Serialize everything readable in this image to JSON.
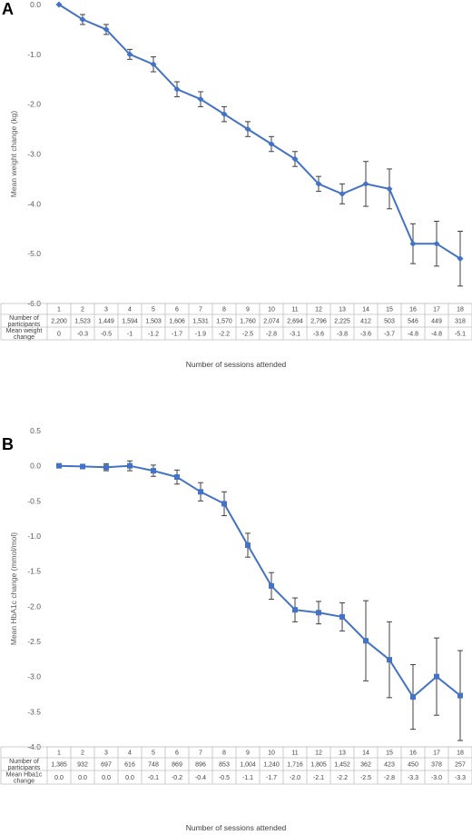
{
  "chart_data": [
    {
      "panel": "A",
      "type": "line",
      "xlabel": "Number of sessions attended",
      "ylabel": "Mean weight change (kg)",
      "ylim": [
        -6.0,
        0.0
      ],
      "yticks": [
        "0.0",
        "-1.0",
        "-2.0",
        "-3.0",
        "-4.0",
        "-5.0",
        "-6.0"
      ],
      "ytick_values": [
        0,
        -1,
        -2,
        -3,
        -4,
        -5,
        -6
      ],
      "marker": "diamond",
      "color": "#4472c4",
      "x": [
        "1",
        "2",
        "3",
        "4",
        "5",
        "6",
        "7",
        "8",
        "9",
        "10",
        "11",
        "12",
        "13",
        "14",
        "15",
        "16",
        "17",
        "18"
      ],
      "values": [
        0,
        -0.3,
        -0.5,
        -1.0,
        -1.2,
        -1.7,
        -1.9,
        -2.2,
        -2.5,
        -2.8,
        -3.1,
        -3.6,
        -3.8,
        -3.6,
        -3.7,
        -4.8,
        -4.8,
        -5.1
      ],
      "error": [
        0,
        0.1,
        0.1,
        0.1,
        0.15,
        0.15,
        0.15,
        0.15,
        0.15,
        0.15,
        0.15,
        0.15,
        0.2,
        0.45,
        0.4,
        0.4,
        0.45,
        0.55
      ],
      "table": {
        "row1_label": [
          "Number of",
          "participants"
        ],
        "row2_label": [
          "Mean weight",
          "change"
        ],
        "participants": [
          "2,200",
          "1,523",
          "1,449",
          "1,594",
          "1,503",
          "1,606",
          "1,531",
          "1,570",
          "1,760",
          "2,074",
          "2,694",
          "2,796",
          "2,225",
          "412",
          "503",
          "546",
          "449",
          "318"
        ],
        "change": [
          "0",
          "-0.3",
          "-0.5",
          "-1",
          "-1.2",
          "-1.7",
          "-1.9",
          "-2.2",
          "-2.5",
          "-2.8",
          "-3.1",
          "-3.6",
          "-3.8",
          "-3.6",
          "-3.7",
          "-4.8",
          "-4.8",
          "-5.1"
        ]
      }
    },
    {
      "panel": "B",
      "type": "line",
      "xlabel": "Number of sessions attended",
      "ylabel": "Mean HbA1c change (mmol/mol)",
      "ylim": [
        -4.0,
        0.5
      ],
      "yticks": [
        "0.5",
        "0.0",
        "-0.5",
        "-1.0",
        "-1.5",
        "-2.0",
        "-2.5",
        "-3.0",
        "-3.5",
        "-4.0"
      ],
      "ytick_values": [
        0.5,
        0,
        -0.5,
        -1,
        -1.5,
        -2,
        -2.5,
        -3,
        -3.5,
        -4
      ],
      "marker": "square",
      "color": "#4472c4",
      "x": [
        "1",
        "2",
        "3",
        "4",
        "5",
        "6",
        "7",
        "8",
        "9",
        "10",
        "11",
        "12",
        "13",
        "14",
        "15",
        "16",
        "17",
        "18"
      ],
      "values": [
        0.0,
        -0.01,
        -0.02,
        0.0,
        -0.07,
        -0.16,
        -0.37,
        -0.54,
        -1.13,
        -1.71,
        -2.05,
        -2.09,
        -2.15,
        -2.49,
        -2.76,
        -3.29,
        -3.0,
        -3.27
      ],
      "error": [
        0.02,
        0.03,
        0.05,
        0.07,
        0.08,
        0.1,
        0.13,
        0.17,
        0.17,
        0.19,
        0.17,
        0.16,
        0.2,
        0.57,
        0.54,
        0.46,
        0.55,
        0.64
      ],
      "table": {
        "row1_label": [
          "Number of",
          "participants"
        ],
        "row2_label": [
          "Mean Hba1c",
          "change"
        ],
        "participants": [
          "1,385",
          "932",
          "697",
          "616",
          "748",
          "869",
          "896",
          "853",
          "1,004",
          "1,240",
          "1,716",
          "1,805",
          "1,452",
          "362",
          "423",
          "450",
          "378",
          "257"
        ],
        "change": [
          "0.0",
          "0.0",
          "0.0",
          "0.0",
          "-0.1",
          "-0.2",
          "-0.4",
          "-0.5",
          "-1.1",
          "-1.7",
          "-2.0",
          "-2.1",
          "-2.2",
          "-2.5",
          "-2.8",
          "-3.3",
          "-3.0",
          "-3.3"
        ]
      }
    }
  ]
}
